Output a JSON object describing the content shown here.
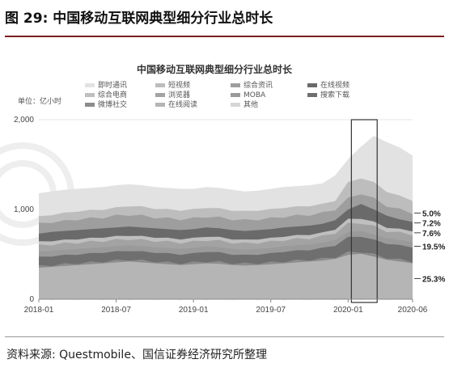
{
  "figure": {
    "title": "图 29:  中国移动互联网典型细分行业总时长",
    "source": "资料来源:  Questmobile、国信证券经济研究所整理"
  },
  "chart_data": {
    "type": "area",
    "title": "中国移动互联网典型细分行业总时长",
    "ylabel": "单位：亿小时",
    "ylim": [
      0,
      2000
    ],
    "yticks": [
      0,
      1000,
      2000
    ],
    "ytick_labels": [
      "0",
      "1,000",
      "2,000"
    ],
    "x_tick_labels": [
      "2018-01",
      "2018-07",
      "2019-01",
      "2019-07",
      "2020-01",
      "2020-06"
    ],
    "x_tick_index": [
      0,
      6,
      12,
      18,
      24,
      29
    ],
    "legend_position": "top",
    "highlight_box": {
      "from_index": 24,
      "to_index": 26
    },
    "series": [
      {
        "name": "即时通讯",
        "color": "#e2e2e2",
        "values": [
          1180,
          1200,
          1220,
          1230,
          1240,
          1250,
          1270,
          1280,
          1270,
          1250,
          1240,
          1230,
          1230,
          1250,
          1240,
          1220,
          1200,
          1210,
          1230,
          1250,
          1260,
          1270,
          1290,
          1380,
          1560,
          1700,
          1820,
          1750,
          1690,
          1600
        ]
      },
      {
        "name": "短视频",
        "color": "#bdbdbd",
        "values": [
          920,
          940,
          960,
          980,
          990,
          1000,
          1020,
          1040,
          1030,
          1010,
          1000,
          990,
          1000,
          1020,
          1010,
          990,
          980,
          990,
          1000,
          1020,
          1030,
          1040,
          1060,
          1100,
          1300,
          1350,
          1300,
          1200,
          1150,
          1100
        ]
      },
      {
        "name": "综合资讯",
        "color": "#9e9e9e",
        "values": [
          840,
          860,
          870,
          890,
          900,
          910,
          930,
          940,
          930,
          910,
          900,
          890,
          900,
          920,
          910,
          890,
          880,
          890,
          900,
          920,
          930,
          940,
          960,
          1000,
          1120,
          1180,
          1120,
          1040,
          1000,
          960
        ]
      },
      {
        "name": "在线视频",
        "color": "#6a6a6a",
        "values": [
          730,
          750,
          760,
          770,
          780,
          790,
          800,
          810,
          800,
          790,
          780,
          770,
          780,
          800,
          790,
          770,
          760,
          770,
          780,
          800,
          810,
          820,
          840,
          880,
          1000,
          1060,
          1000,
          930,
          890,
          860
        ]
      },
      {
        "name": "综合电商",
        "color": "#bfbfbf",
        "values": [
          640,
          650,
          660,
          670,
          680,
          690,
          700,
          710,
          700,
          690,
          680,
          670,
          680,
          700,
          690,
          670,
          660,
          670,
          680,
          700,
          710,
          720,
          740,
          780,
          890,
          900,
          860,
          800,
          780,
          760
        ]
      },
      {
        "name": "浏览器",
        "color": "#a3a3a3",
        "values": [
          600,
          610,
          620,
          630,
          640,
          650,
          660,
          670,
          660,
          650,
          640,
          630,
          640,
          660,
          650,
          630,
          620,
          630,
          640,
          660,
          670,
          680,
          700,
          740,
          840,
          850,
          810,
          760,
          740,
          720
        ]
      },
      {
        "name": "MOBA",
        "color": "#9a9a9a",
        "values": [
          530,
          540,
          550,
          560,
          570,
          580,
          590,
          600,
          590,
          580,
          570,
          560,
          570,
          590,
          580,
          560,
          550,
          560,
          570,
          590,
          600,
          610,
          630,
          660,
          750,
          760,
          720,
          680,
          660,
          640
        ]
      },
      {
        "name": "搜索下载",
        "color": "#6f6f6f",
        "values": [
          470,
          480,
          490,
          500,
          510,
          520,
          530,
          540,
          530,
          520,
          510,
          500,
          510,
          530,
          520,
          500,
          490,
          500,
          510,
          530,
          540,
          550,
          570,
          600,
          690,
          700,
          660,
          620,
          600,
          580
        ]
      },
      {
        "name": "微博社交",
        "color": "#8c8c8c",
        "values": [
          370,
          380,
          390,
          400,
          410,
          420,
          430,
          440,
          430,
          420,
          410,
          400,
          410,
          420,
          415,
          400,
          395,
          400,
          410,
          420,
          430,
          440,
          450,
          470,
          520,
          530,
          500,
          460,
          440,
          420
        ]
      },
      {
        "name": "在线阅读",
        "color": "#b5b5b5",
        "values": [
          350,
          360,
          370,
          380,
          390,
          400,
          410,
          420,
          410,
          400,
          390,
          380,
          390,
          400,
          395,
          380,
          375,
          380,
          390,
          400,
          410,
          420,
          430,
          450,
          495,
          505,
          475,
          440,
          420,
          400
        ]
      },
      {
        "name": "其他",
        "color": "#d6d6d6",
        "values": [
          0,
          0,
          0,
          0,
          0,
          0,
          0,
          0,
          0,
          0,
          0,
          0,
          0,
          0,
          0,
          0,
          0,
          0,
          0,
          0,
          0,
          0,
          0,
          0,
          0,
          0,
          0,
          0,
          0,
          0
        ]
      }
    ],
    "share_annotations": [
      "5.0%",
      "7.2%",
      "7.6%",
      "19.5%",
      "25.3%"
    ],
    "share_annotation_values": [
      960,
      850,
      740,
      590,
      230
    ]
  }
}
